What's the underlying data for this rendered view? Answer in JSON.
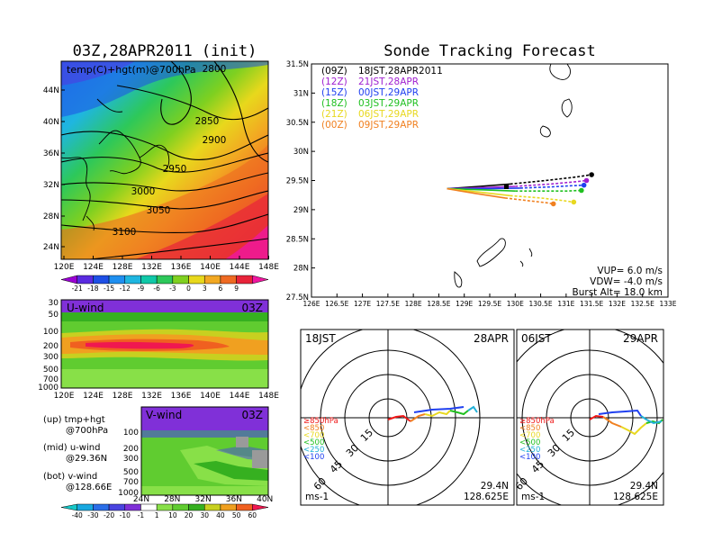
{
  "left_title": "03Z,28APR2011 (init)",
  "right_title": "Sonde Tracking Forecast",
  "map": {
    "label": "temp(C)+hgt(m)@700hPa",
    "lon_ticks": [
      "120E",
      "124E",
      "128E",
      "132E",
      "136E",
      "140E",
      "144E",
      "148E"
    ],
    "lat_ticks": [
      "44N",
      "40N",
      "36N",
      "32N",
      "28N",
      "24N"
    ],
    "contour_labels": [
      "2800",
      "2850",
      "2900",
      "2950",
      "3000",
      "3050",
      "3100"
    ]
  },
  "temp_colorbar": {
    "labels": [
      "-21",
      "-18",
      "-15",
      "-12",
      "-9",
      "-6",
      "-3",
      "0",
      "3",
      "6",
      "9"
    ],
    "colors": [
      "#9b00d4",
      "#5a2be0",
      "#1e4fe6",
      "#1f8ff0",
      "#1fb6e0",
      "#10c8a8",
      "#2dc85a",
      "#7fd020",
      "#e8d81c",
      "#f2a822",
      "#ef6a22",
      "#e8243a",
      "#ef17a0"
    ]
  },
  "uwind": {
    "label": "U-wind",
    "time": "03Z",
    "y_ticks": [
      "30",
      "50",
      "100",
      "200",
      "300",
      "500",
      "700",
      "1000"
    ],
    "x_ticks": [
      "120E",
      "124E",
      "128E",
      "132E",
      "136E",
      "140E",
      "144E",
      "148E"
    ]
  },
  "vwind": {
    "label": "V-wind",
    "time": "03Z",
    "y_ticks": [
      "100",
      "200",
      "300",
      "500",
      "700",
      "1000"
    ],
    "x_ticks": [
      "24N",
      "28N",
      "32N",
      "36N",
      "40N"
    ]
  },
  "notes": [
    {
      "a": "(up)  tmp+hgt",
      "b": "@700hPa"
    },
    {
      "a": "(mid)  u-wind",
      "b": "@29.36N"
    },
    {
      "a": "(bot)  v-wind",
      "b": "@128.66E"
    }
  ],
  "wind_colorbar": {
    "labels": [
      "-40",
      "-30",
      "-20",
      "-10",
      "-1",
      "1",
      "10",
      "20",
      "30",
      "40",
      "50",
      "60"
    ],
    "colors": [
      "#16c8c8",
      "#18a8e0",
      "#2a6ee8",
      "#4a44e0",
      "#8030d8",
      "#ffffff",
      "#88e048",
      "#60cc30",
      "#36b020",
      "#c8d020",
      "#f0a020",
      "#f06020",
      "#f01850"
    ]
  },
  "track": {
    "lat_ticks": [
      "31.5N",
      "31N",
      "30.5N",
      "30N",
      "29.5N",
      "29N",
      "28.5N",
      "28N",
      "27.5N"
    ],
    "lon_ticks": [
      "126E",
      "126.5E",
      "127E",
      "127.5E",
      "128E",
      "128.5E",
      "129E",
      "129.5E",
      "130E",
      "130.5E",
      "131E",
      "131.5E",
      "132E",
      "132.5E",
      "133E"
    ],
    "legend": [
      {
        "code": "(09Z)",
        "label": "18JST,28APR2011",
        "color": "#000000"
      },
      {
        "code": "(12Z)",
        "label": "21JST,28APR",
        "color": "#a020d0"
      },
      {
        "code": "(15Z)",
        "label": "00JST,29APR",
        "color": "#2040f0"
      },
      {
        "code": "(18Z)",
        "label": "03JST,29APR",
        "color": "#20c020"
      },
      {
        "code": "(21Z)",
        "label": "06JST,29APR",
        "color": "#e8d820"
      },
      {
        "code": "(00Z)",
        "label": "09JST,29APR",
        "color": "#f08020"
      }
    ],
    "info": [
      "VUP=  6.0  m/s",
      "VDW=  -4.0  m/s",
      "Burst Alt=  18.0  km"
    ]
  },
  "chart_data": {
    "type": "line",
    "title": "Sonde Tracking Forecast",
    "xlabel": "",
    "ylabel": "",
    "xlim": [
      126,
      133
    ],
    "ylim": [
      27.5,
      31.5
    ],
    "series": [
      {
        "name": "(09Z) 18JST,28APR2011",
        "color": "#000000",
        "x": [
          128.66,
          129.3,
          129.9,
          130.6,
          131.2,
          131.5
        ],
        "y": [
          29.36,
          29.4,
          29.44,
          29.5,
          29.56,
          29.6
        ]
      },
      {
        "name": "(12Z) 21JST,28APR",
        "color": "#a020d0",
        "x": [
          128.66,
          129.4,
          130.0,
          130.7,
          131.2,
          131.4
        ],
        "y": [
          29.36,
          29.38,
          29.4,
          29.44,
          29.48,
          29.5
        ]
      },
      {
        "name": "(15Z) 00JST,29APR",
        "color": "#2040f0",
        "x": [
          128.66,
          129.4,
          130.1,
          130.7,
          131.1,
          131.35
        ],
        "y": [
          29.36,
          29.36,
          29.37,
          29.39,
          29.41,
          29.42
        ]
      },
      {
        "name": "(18Z) 03JST,29APR",
        "color": "#20c020",
        "x": [
          128.66,
          129.4,
          130.0,
          130.6,
          131.0,
          131.3
        ],
        "y": [
          29.36,
          29.34,
          29.32,
          29.32,
          29.32,
          29.33
        ]
      },
      {
        "name": "(21Z) 06JST,29APR",
        "color": "#e8d820",
        "x": [
          128.66,
          129.3,
          129.9,
          130.5,
          130.9,
          131.15
        ],
        "y": [
          29.36,
          29.3,
          29.24,
          29.2,
          29.16,
          29.13
        ]
      },
      {
        "name": "(00Z) 09JST,29APR",
        "color": "#f08020",
        "x": [
          128.66,
          129.2,
          129.8,
          130.3,
          130.6,
          130.75
        ],
        "y": [
          29.36,
          29.28,
          29.2,
          29.15,
          29.12,
          29.1
        ]
      }
    ]
  },
  "polar_left": {
    "time": "18JST",
    "date": "28APR",
    "rings": [
      "15",
      "30",
      "45",
      "60"
    ],
    "lat": "29.4N",
    "lon": "128.625E",
    "unit": "ms-1"
  },
  "polar_right": {
    "time": "06JST",
    "date": "29APR",
    "rings": [
      "15",
      "30",
      "45",
      "60"
    ],
    "lat": "29.4N",
    "lon": "128.625E",
    "unit": "ms-1"
  },
  "pressure_legend": [
    {
      "label": "≥850hPa",
      "color": "#f01818"
    },
    {
      "label": "<850",
      "color": "#f08020"
    },
    {
      "label": "<700",
      "color": "#e8d820"
    },
    {
      "label": "<500",
      "color": "#20c020"
    },
    {
      "label": "<250",
      "color": "#20b0d8"
    },
    {
      "label": "<100",
      "color": "#2040f0"
    }
  ]
}
